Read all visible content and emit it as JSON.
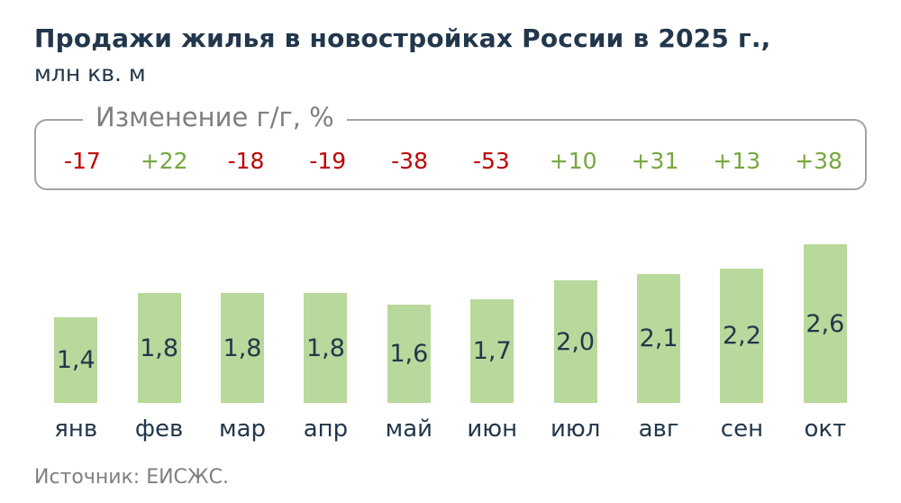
{
  "chart_data": {
    "type": "bar",
    "title": "Продажи жилья в новостройках России в 2025 г.,",
    "subtitle": "млн кв. м",
    "changes_label": "Изменение г/г, %",
    "changes": [
      "-17",
      "+22",
      "-18",
      "-19",
      "-38",
      "-53",
      "+10",
      "+31",
      "+13",
      "+38"
    ],
    "categories": [
      "янв",
      "фев",
      "мар",
      "апр",
      "май",
      "июн",
      "июл",
      "авг",
      "сен",
      "окт"
    ],
    "values": [
      1.4,
      1.8,
      1.8,
      1.8,
      1.6,
      1.7,
      2.0,
      2.1,
      2.2,
      2.6
    ],
    "value_labels": [
      "1,4",
      "1,8",
      "1,8",
      "1,8",
      "1,6",
      "1,7",
      "2,0",
      "2,1",
      "2,2",
      "2,6"
    ],
    "xlabel": "",
    "ylabel": "млн кв. м",
    "ylim": [
      0,
      2.8
    ],
    "grid": false,
    "legend": "none",
    "source": "Источник: ЕИСЖС.",
    "colors": {
      "bar": "#b9d89b",
      "positive": "#76a73d",
      "negative": "#c00000",
      "text": "#22374b",
      "muted": "#7f7f7f"
    }
  }
}
